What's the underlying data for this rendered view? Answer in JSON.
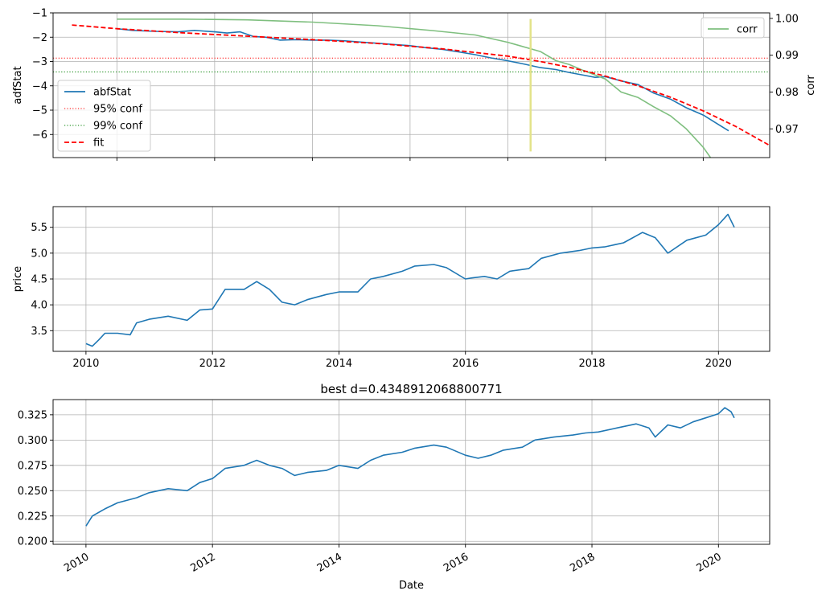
{
  "chart_data": [
    {
      "type": "line",
      "title": "",
      "xlabel": "",
      "ylabel": "adfStat",
      "ylabel_right": "corr",
      "xlim": [
        2009.48,
        2020.48
      ],
      "ylim": [
        -6.95,
        -1.0
      ],
      "ylim_right": [
        0.9622,
        1.0015
      ],
      "yticks": [
        -1,
        -2,
        -3,
        -4,
        -5,
        -6
      ],
      "yticks_right": [
        1.0,
        0.99,
        0.98,
        0.97
      ],
      "ytick_labels_right": [
        "1.00",
        "0.99",
        "0.98",
        "0.97"
      ],
      "xticks_grid": [
        2010.46,
        2011.96,
        2013.46,
        2014.96,
        2016.46,
        2017.96,
        2019.46
      ],
      "grid": true,
      "series": [
        {
          "name": "abfStat",
          "axis": "left",
          "color": "#1f77b4",
          "style": "solid",
          "x": [
            2010.46,
            2010.7,
            2011.05,
            2011.4,
            2011.65,
            2011.96,
            2012.15,
            2012.35,
            2012.55,
            2012.75,
            2012.96,
            2013.2,
            2013.46,
            2013.7,
            2013.96,
            2014.2,
            2014.46,
            2014.7,
            2014.96,
            2015.2,
            2015.46,
            2015.7,
            2015.96,
            2016.2,
            2016.46,
            2016.7,
            2016.96,
            2017.2,
            2017.4,
            2017.6,
            2017.8,
            2017.96,
            2018.2,
            2018.46,
            2018.7,
            2018.96,
            2019.2,
            2019.46,
            2019.7,
            2019.85
          ],
          "values": [
            -1.65,
            -1.72,
            -1.76,
            -1.78,
            -1.72,
            -1.78,
            -1.83,
            -1.78,
            -1.97,
            -2.0,
            -2.12,
            -2.1,
            -2.12,
            -2.12,
            -2.15,
            -2.2,
            -2.25,
            -2.3,
            -2.35,
            -2.43,
            -2.5,
            -2.6,
            -2.72,
            -2.85,
            -2.97,
            -3.1,
            -3.25,
            -3.33,
            -3.45,
            -3.55,
            -3.65,
            -3.62,
            -3.8,
            -3.95,
            -4.3,
            -4.55,
            -4.9,
            -5.2,
            -5.6,
            -5.85
          ]
        },
        {
          "name": "corr",
          "axis": "right",
          "color": "#7fbf7f",
          "style": "solid",
          "x": [
            2010.46,
            2011.46,
            2012.46,
            2013.46,
            2014.46,
            2015.3,
            2015.96,
            2016.46,
            2016.96,
            2017.2,
            2017.4,
            2017.6,
            2017.96,
            2018.2,
            2018.46,
            2018.7,
            2018.96,
            2019.2,
            2019.46,
            2019.7,
            2019.96
          ],
          "values": [
            0.9998,
            0.9998,
            0.9996,
            0.999,
            0.998,
            0.9967,
            0.9955,
            0.9935,
            0.991,
            0.9885,
            0.9875,
            0.986,
            0.9835,
            0.98,
            0.9785,
            0.976,
            0.9735,
            0.97,
            0.965,
            0.959,
            0.9575
          ]
        },
        {
          "name": "fit",
          "axis": "left",
          "color": "#ff0000",
          "style": "dashed",
          "x": [
            2009.77,
            2010.46,
            2011.46,
            2012.46,
            2013.46,
            2014.46,
            2015.46,
            2016.46,
            2016.96,
            2017.46,
            2017.96,
            2018.46,
            2018.96,
            2019.46,
            2019.96,
            2020.46
          ],
          "values": [
            -1.5,
            -1.65,
            -1.82,
            -1.96,
            -2.1,
            -2.26,
            -2.48,
            -2.78,
            -3.0,
            -3.27,
            -3.6,
            -4.0,
            -4.47,
            -5.03,
            -5.67,
            -6.42
          ]
        }
      ],
      "hlines": [
        {
          "name": "95% conf",
          "y": -2.86,
          "color": "#ff0000",
          "style": "dotted"
        },
        {
          "name": "99% conf",
          "y": -3.43,
          "color": "#008000",
          "style": "dotted"
        }
      ],
      "vline": {
        "x": 2016.81,
        "y_range": [
          -6.7,
          -1.25
        ],
        "color": "#e3e38a"
      },
      "legend": {
        "placement": "center-left",
        "entries": [
          "abfStat",
          "95% conf",
          "99% conf",
          "fit"
        ]
      },
      "legend_right": {
        "placement": "top-right",
        "entries": [
          "corr"
        ]
      }
    },
    {
      "type": "line",
      "title": "",
      "xlabel": "",
      "ylabel": "price",
      "xlim": [
        2009.48,
        2020.81
      ],
      "ylim": [
        3.1,
        5.9
      ],
      "xticks": [
        2010,
        2012,
        2014,
        2016,
        2018,
        2020
      ],
      "yticks": [
        3.5,
        4.0,
        4.5,
        5.0,
        5.5
      ],
      "ytick_labels": [
        "3.5",
        "4.0",
        "4.5",
        "5.0",
        "5.5"
      ],
      "grid": true,
      "series": [
        {
          "name": "price",
          "color": "#1f77b4",
          "x": [
            2010.0,
            2010.1,
            2010.2,
            2010.3,
            2010.5,
            2010.7,
            2010.8,
            2011.0,
            2011.3,
            2011.6,
            2011.8,
            2012.0,
            2012.2,
            2012.5,
            2012.7,
            2012.9,
            2013.1,
            2013.3,
            2013.5,
            2013.8,
            2014.0,
            2014.3,
            2014.5,
            2014.7,
            2015.0,
            2015.2,
            2015.5,
            2015.7,
            2016.0,
            2016.1,
            2016.3,
            2016.5,
            2016.7,
            2017.0,
            2017.2,
            2017.5,
            2017.8,
            2018.0,
            2018.2,
            2018.5,
            2018.8,
            2019.0,
            2019.2,
            2019.5,
            2019.8,
            2020.0,
            2020.15,
            2020.25
          ],
          "values": [
            3.25,
            3.2,
            3.32,
            3.45,
            3.45,
            3.42,
            3.65,
            3.72,
            3.78,
            3.7,
            3.9,
            3.92,
            4.3,
            4.3,
            4.45,
            4.3,
            4.05,
            4.0,
            4.1,
            4.2,
            4.25,
            4.25,
            4.5,
            4.55,
            4.65,
            4.75,
            4.78,
            4.72,
            4.5,
            4.52,
            4.55,
            4.5,
            4.65,
            4.7,
            4.9,
            5.0,
            5.05,
            5.1,
            5.12,
            5.2,
            5.4,
            5.3,
            5.0,
            5.25,
            5.35,
            5.55,
            5.75,
            5.5
          ]
        }
      ]
    },
    {
      "type": "line",
      "title": "best d=0.4348912068800771",
      "xlabel": "Date",
      "ylabel": "",
      "xlim": [
        2009.48,
        2020.81
      ],
      "ylim": [
        0.197,
        0.34
      ],
      "xticks": [
        2010,
        2012,
        2014,
        2016,
        2018,
        2020
      ],
      "yticks": [
        0.2,
        0.225,
        0.25,
        0.275,
        0.3,
        0.325
      ],
      "ytick_labels": [
        "0.200",
        "0.225",
        "0.250",
        "0.275",
        "0.300",
        "0.325"
      ],
      "grid": true,
      "series": [
        {
          "name": "best d",
          "color": "#1f77b4",
          "x": [
            2010.0,
            2010.1,
            2010.3,
            2010.5,
            2010.8,
            2011.0,
            2011.3,
            2011.6,
            2011.8,
            2012.0,
            2012.2,
            2012.5,
            2012.7,
            2012.9,
            2013.1,
            2013.3,
            2013.5,
            2013.8,
            2014.0,
            2014.3,
            2014.5,
            2014.7,
            2015.0,
            2015.2,
            2015.5,
            2015.7,
            2016.0,
            2016.2,
            2016.4,
            2016.6,
            2016.9,
            2017.1,
            2017.4,
            2017.7,
            2017.9,
            2018.1,
            2018.4,
            2018.7,
            2018.9,
            2019.0,
            2019.2,
            2019.4,
            2019.6,
            2019.8,
            2020.0,
            2020.1,
            2020.2,
            2020.25
          ],
          "values": [
            0.215,
            0.225,
            0.232,
            0.238,
            0.243,
            0.248,
            0.252,
            0.25,
            0.258,
            0.262,
            0.272,
            0.275,
            0.28,
            0.275,
            0.272,
            0.265,
            0.268,
            0.27,
            0.275,
            0.272,
            0.28,
            0.285,
            0.288,
            0.292,
            0.295,
            0.293,
            0.285,
            0.282,
            0.285,
            0.29,
            0.293,
            0.3,
            0.303,
            0.305,
            0.307,
            0.308,
            0.312,
            0.316,
            0.312,
            0.303,
            0.315,
            0.312,
            0.318,
            0.322,
            0.326,
            0.332,
            0.328,
            0.322
          ]
        }
      ]
    }
  ]
}
